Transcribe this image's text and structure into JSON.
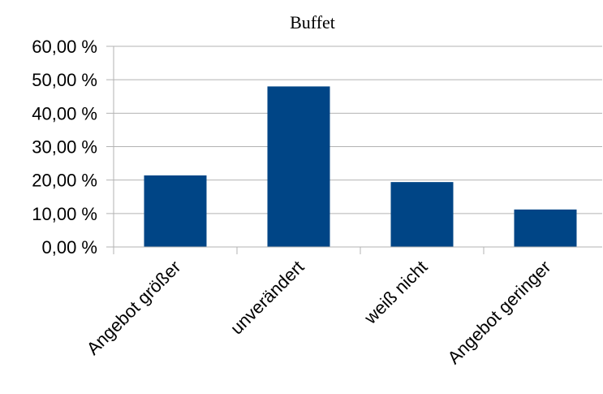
{
  "chart_data": {
    "type": "bar",
    "title": "Buffet",
    "categories": [
      "Angebot größer",
      "unverändert",
      "weiß nicht",
      "Angebot geringer"
    ],
    "values": [
      21.4,
      48.0,
      19.4,
      11.2
    ],
    "ylim": [
      0,
      60
    ],
    "yticks": [
      0,
      10,
      20,
      30,
      40,
      50,
      60
    ],
    "ytick_labels": [
      "0,00 %",
      "10,00 %",
      "20,00 %",
      "30,00 %",
      "40,00 %",
      "50,00 %",
      "60,00 %"
    ],
    "xlabel": "",
    "ylabel": "",
    "grid": true,
    "legend": "none",
    "colors": {
      "bar": "#004586",
      "grid": "#b3b3b3",
      "axis": "#b3b3b3"
    }
  }
}
